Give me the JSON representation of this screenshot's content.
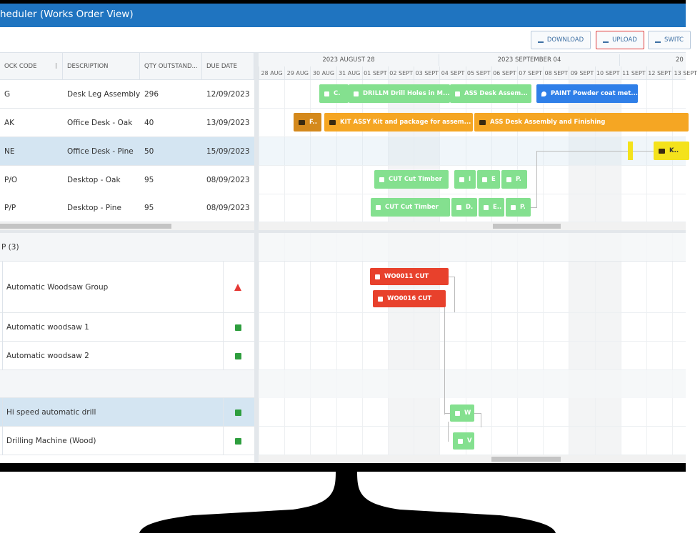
{
  "header": {
    "title": "heduler (Works Order View)"
  },
  "toolbar": {
    "buttons": [
      "DOWNLOAD",
      "UPLOAD",
      "SWITC"
    ]
  },
  "orders_table": {
    "columns": [
      "OCK CODE",
      "DESCRIPTION",
      "QTY OUTSTAND...",
      "DUE DATE"
    ],
    "rows": [
      [
        "G",
        "Desk Leg Assembly",
        296,
        "12/09/2023"
      ],
      [
        "AK",
        "Office Desk - Oak",
        40,
        "13/09/2023"
      ],
      [
        "NE",
        "Office Desk - Pine",
        50,
        "15/09/2023"
      ],
      [
        "P/O",
        "Desktop - Oak",
        95,
        "08/09/2023"
      ],
      [
        "P/P",
        "Desktop - Pine",
        95,
        "08/09/2023"
      ]
    ]
  },
  "timeline": {
    "weeks": [
      "2023 AUGUST 28",
      "2023 SEPTEMBER 04",
      "20"
    ],
    "days": [
      "28 AUG",
      "29 AUG",
      "30 AUG",
      "31 AUG",
      "01 SEPT",
      "02 SEPT",
      "03 SEPT",
      "04 SEPT",
      "05 SEPT",
      "06 SEPT",
      "07 SEPT",
      "08 SEPT",
      "09 SEPT",
      "10 SEPT",
      "11 SEPT",
      "12 SEPT",
      "13 SEPT"
    ]
  },
  "order_bars": [
    [
      "C.",
      "DRILLM Drill Holes in M...",
      "ASS Desk Assem...",
      "PAINT Powder coat met..."
    ],
    [
      "F..",
      "KIT ASSY Kit and package for assem...",
      "ASS Desk Assembly and Finishing"
    ],
    [
      "K.."
    ],
    [
      "CUT Cut Timber",
      "I",
      "E",
      "P."
    ],
    [
      "CUT Cut Timber",
      "D.",
      "E..",
      "P."
    ]
  ],
  "resource_group": {
    "title": "P (3)",
    "rows": [
      "Automatic Woodsaw Group",
      "Automatic woodsaw 1",
      "Automatic woodsaw 2",
      "Hi speed automatic drill",
      "Drilling Machine (Wood)"
    ]
  },
  "resource_bars": [
    "WO0011 CUT",
    "WO0016 CUT",
    "W",
    "V"
  ]
}
